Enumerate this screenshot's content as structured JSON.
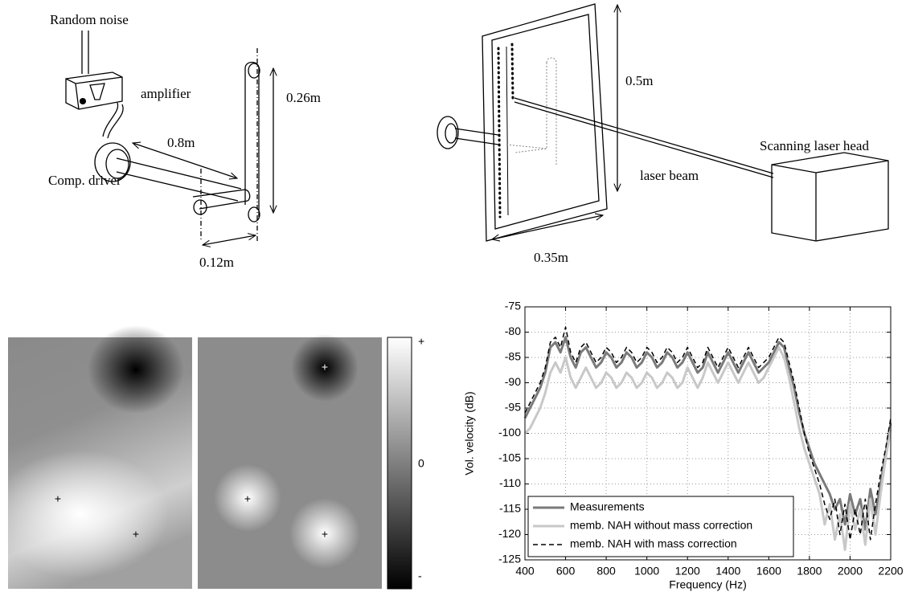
{
  "setup_diagram": {
    "source": "Random noise",
    "amplifier": "amplifier",
    "driver": "Comp. driver",
    "length": "0.8m",
    "height": "0.26m",
    "spacing": "0.12m"
  },
  "laser_diagram": {
    "height": "0.5m",
    "width": "0.35m",
    "beam": "laser beam",
    "head": "Scanning laser head"
  },
  "maps": {
    "marker": "+",
    "colorbar": {
      "top": "+",
      "middle": "0",
      "bottom": "-"
    }
  },
  "chart_data": {
    "type": "line",
    "xlabel": "Frequency (Hz)",
    "ylabel": "Vol. velocity (dB)",
    "x": [
      400,
      425,
      450,
      475,
      500,
      525,
      550,
      575,
      600,
      625,
      650,
      675,
      700,
      725,
      750,
      775,
      800,
      825,
      850,
      875,
      900,
      925,
      950,
      975,
      1000,
      1025,
      1050,
      1075,
      1100,
      1125,
      1150,
      1175,
      1200,
      1225,
      1250,
      1275,
      1300,
      1325,
      1350,
      1375,
      1400,
      1425,
      1450,
      1475,
      1500,
      1525,
      1550,
      1575,
      1600,
      1625,
      1650,
      1675,
      1700,
      1725,
      1750,
      1775,
      1800,
      1825,
      1850,
      1875,
      1900,
      1925,
      1950,
      1975,
      2000,
      2025,
      2050,
      2075,
      2100,
      2125,
      2150,
      2175,
      2200
    ],
    "series": [
      {
        "name": "Measurements",
        "color": "#7a7a7a",
        "dash": false,
        "values": [
          -97,
          -95,
          -93,
          -91,
          -88,
          -83,
          -82,
          -84,
          -81,
          -85,
          -87,
          -84,
          -83,
          -85,
          -87,
          -86,
          -84,
          -85,
          -87,
          -86,
          -84,
          -85,
          -87,
          -86,
          -84,
          -85,
          -87,
          -86,
          -84,
          -85,
          -87,
          -86,
          -84,
          -86,
          -88,
          -87,
          -84,
          -86,
          -88,
          -86,
          -84,
          -86,
          -88,
          -86,
          -84,
          -86,
          -88,
          -87,
          -86,
          -84,
          -82,
          -83,
          -87,
          -91,
          -96,
          -100,
          -103,
          -106,
          -108,
          -110,
          -112,
          -115,
          -113,
          -118,
          -112,
          -116,
          -113,
          -119,
          -111,
          -116,
          -110,
          -104,
          -98
        ]
      },
      {
        "name": "memb. NAH without mass correction",
        "color": "#c8c8c8",
        "dash": false,
        "values": [
          -100,
          -99,
          -97,
          -95,
          -92,
          -88,
          -86,
          -88,
          -85,
          -89,
          -91,
          -89,
          -87,
          -89,
          -91,
          -90,
          -88,
          -89,
          -91,
          -90,
          -88,
          -89,
          -91,
          -90,
          -88,
          -89,
          -91,
          -90,
          -88,
          -89,
          -91,
          -90,
          -87,
          -89,
          -91,
          -89,
          -86,
          -88,
          -90,
          -88,
          -86,
          -88,
          -90,
          -88,
          -86,
          -88,
          -90,
          -89,
          -87,
          -85,
          -83,
          -85,
          -89,
          -94,
          -99,
          -103,
          -106,
          -109,
          -112,
          -118,
          -114,
          -121,
          -116,
          -123,
          -114,
          -119,
          -115,
          -122,
          -113,
          -120,
          -112,
          -105,
          -99
        ]
      },
      {
        "name": "memb. NAH with mass correction",
        "color": "#000000",
        "dash": true,
        "values": [
          -96,
          -94,
          -92,
          -90,
          -87,
          -82,
          -81,
          -83,
          -79,
          -84,
          -86,
          -83,
          -82,
          -84,
          -86,
          -85,
          -83,
          -84,
          -86,
          -85,
          -83,
          -84,
          -86,
          -85,
          -83,
          -84,
          -86,
          -85,
          -83,
          -84,
          -86,
          -85,
          -83,
          -85,
          -87,
          -86,
          -83,
          -85,
          -87,
          -85,
          -83,
          -85,
          -87,
          -85,
          -83,
          -85,
          -87,
          -86,
          -85,
          -83,
          -81,
          -82,
          -86,
          -90,
          -95,
          -100,
          -104,
          -107,
          -110,
          -114,
          -117,
          -113,
          -120,
          -114,
          -121,
          -115,
          -120,
          -113,
          -121,
          -114,
          -108,
          -103,
          -97
        ]
      }
    ],
    "xlim": [
      400,
      2200
    ],
    "xticks": [
      400,
      600,
      800,
      1000,
      1200,
      1400,
      1600,
      1800,
      2000,
      2200
    ],
    "ylim": [
      -125,
      -75
    ],
    "yticks": [
      -125,
      -120,
      -115,
      -110,
      -105,
      -100,
      -95,
      -90,
      -85,
      -80,
      -75
    ],
    "grid": true,
    "legend": "lower left"
  }
}
